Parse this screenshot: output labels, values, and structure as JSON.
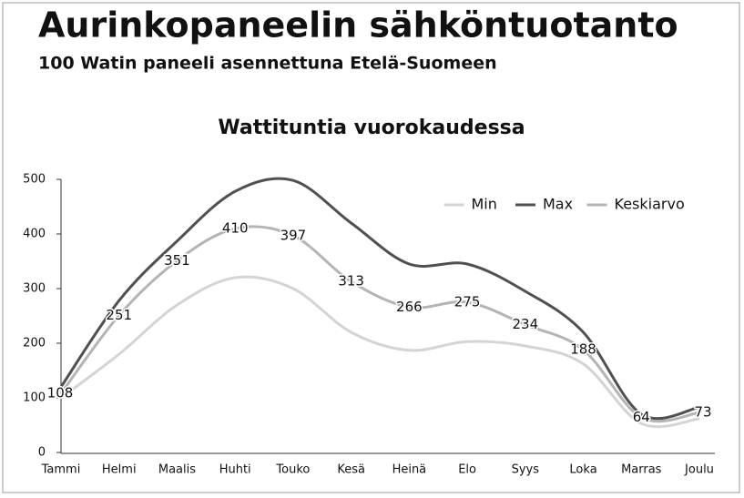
{
  "chart_data": {
    "type": "line",
    "title": "Aurinkopaneelin sähköntuotanto",
    "subtitle": "100 Watin paneeli asennettuna Etelä-Suomeen",
    "chart_title": "Wattituntia vuorokaudessa",
    "categories": [
      "Tammi",
      "Helmi",
      "Maalis",
      "Huhti",
      "Touko",
      "Kesä",
      "Heinä",
      "Elo",
      "Syys",
      "Loka",
      "Marras",
      "Joulu"
    ],
    "series": [
      {
        "name": "Min",
        "color": "#d4d4d4",
        "values": [
          100,
          180,
          270,
          320,
          300,
          220,
          187,
          203,
          195,
          162,
          53,
          62
        ]
      },
      {
        "name": "Max",
        "color": "#505050",
        "values": [
          120,
          278,
          387,
          478,
          498,
          420,
          345,
          345,
          295,
          220,
          70,
          83
        ]
      },
      {
        "name": "Keskiarvo",
        "color": "#b4b4b4",
        "values": [
          108,
          251,
          351,
          410,
          397,
          313,
          266,
          275,
          234,
          188,
          64,
          73
        ],
        "show_value_labels": true
      }
    ],
    "ylim": [
      0,
      500
    ],
    "yticks": [
      0,
      100,
      200,
      300,
      400,
      500
    ],
    "grid": false,
    "legend": "upper right"
  }
}
